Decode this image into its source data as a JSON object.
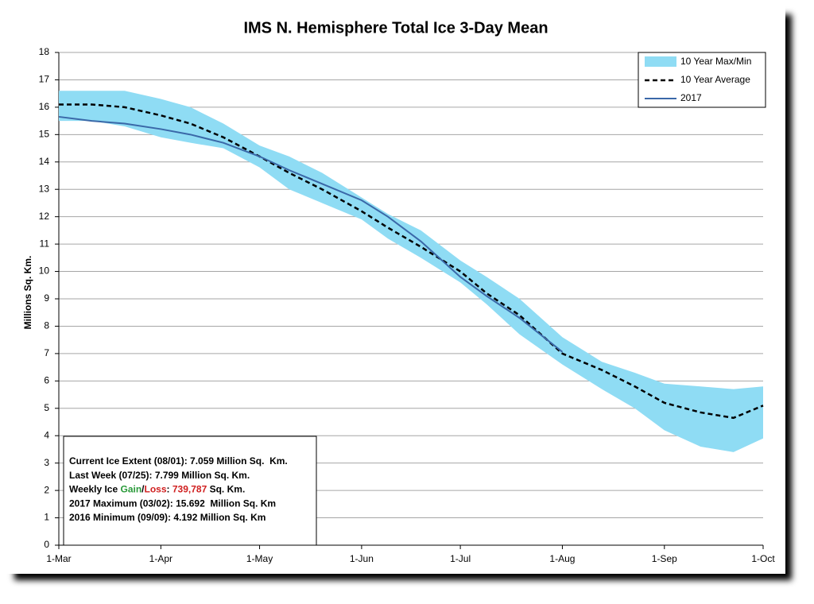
{
  "chart_data": {
    "type": "line",
    "title": "IMS N. Hemisphere Total Ice 3-Day Mean",
    "y_label": "Millions Sq. Km.",
    "x": [
      0,
      10,
      20,
      31,
      40,
      50,
      61,
      70,
      80,
      92,
      100,
      110,
      122,
      130,
      140,
      153,
      165,
      175,
      184,
      195,
      205,
      214
    ],
    "xlim": [
      0,
      214
    ],
    "xticks": [
      {
        "value": 0,
        "label": "1-Mar"
      },
      {
        "value": 31,
        "label": "1-Apr"
      },
      {
        "value": 61,
        "label": "1-May"
      },
      {
        "value": 92,
        "label": "1-Jun"
      },
      {
        "value": 122,
        "label": "1-Jul"
      },
      {
        "value": 153,
        "label": "1-Aug"
      },
      {
        "value": 184,
        "label": "1-Sep"
      },
      {
        "value": 214,
        "label": "1-Oct"
      }
    ],
    "ylim": [
      0,
      18
    ],
    "yticks": [
      0,
      1,
      2,
      3,
      4,
      5,
      6,
      7,
      8,
      9,
      10,
      11,
      12,
      13,
      14,
      15,
      16,
      17,
      18
    ],
    "grid": true,
    "legend": "top-right",
    "band": {
      "name": "10 Year Max/Min",
      "color": "#8fdcf4",
      "high": [
        16.6,
        16.6,
        16.6,
        16.3,
        16.0,
        15.4,
        14.6,
        14.2,
        13.6,
        12.7,
        12.1,
        11.5,
        10.4,
        9.8,
        9.0,
        7.6,
        6.7,
        6.3,
        5.9,
        5.8,
        5.7,
        5.8
      ],
      "low": [
        15.5,
        15.5,
        15.3,
        14.9,
        14.7,
        14.5,
        13.8,
        13.0,
        12.5,
        11.9,
        11.2,
        10.5,
        9.6,
        8.8,
        7.7,
        6.6,
        5.7,
        5.0,
        4.2,
        3.6,
        3.4,
        3.9
      ]
    },
    "series": [
      {
        "name": "10 Year Average",
        "color": "#000000",
        "dashed": true,
        "values": [
          16.1,
          16.1,
          16.0,
          15.7,
          15.4,
          14.9,
          14.2,
          13.6,
          13.0,
          12.2,
          11.6,
          10.9,
          10.0,
          9.2,
          8.4,
          7.0,
          6.4,
          5.8,
          5.2,
          4.85,
          4.65,
          5.1
        ]
      },
      {
        "name": "2017",
        "color": "#3a68a8",
        "dashed": false,
        "values": [
          15.65,
          15.5,
          15.4,
          15.2,
          15.0,
          14.7,
          14.2,
          13.7,
          13.2,
          12.6,
          12.0,
          11.1,
          9.8,
          9.1,
          8.3,
          7.06,
          null,
          null,
          null,
          null,
          null,
          null
        ]
      }
    ],
    "info_box": [
      [
        "Current Ice Extent (08/01): 7.059 Million Sq.  Km."
      ],
      [
        "Last Week (07/25): 7.799 Million Sq. Km."
      ],
      [
        "Weekly Ice ",
        "Gain",
        "/",
        "Loss",
        ": ",
        "739,787",
        " Sq. Km."
      ],
      [
        "2017 Maximum (03/02): 15.692  Million Sq. Km"
      ],
      [
        "2016 Minimum (09/09): 4.192 Million Sq. Km"
      ]
    ]
  }
}
